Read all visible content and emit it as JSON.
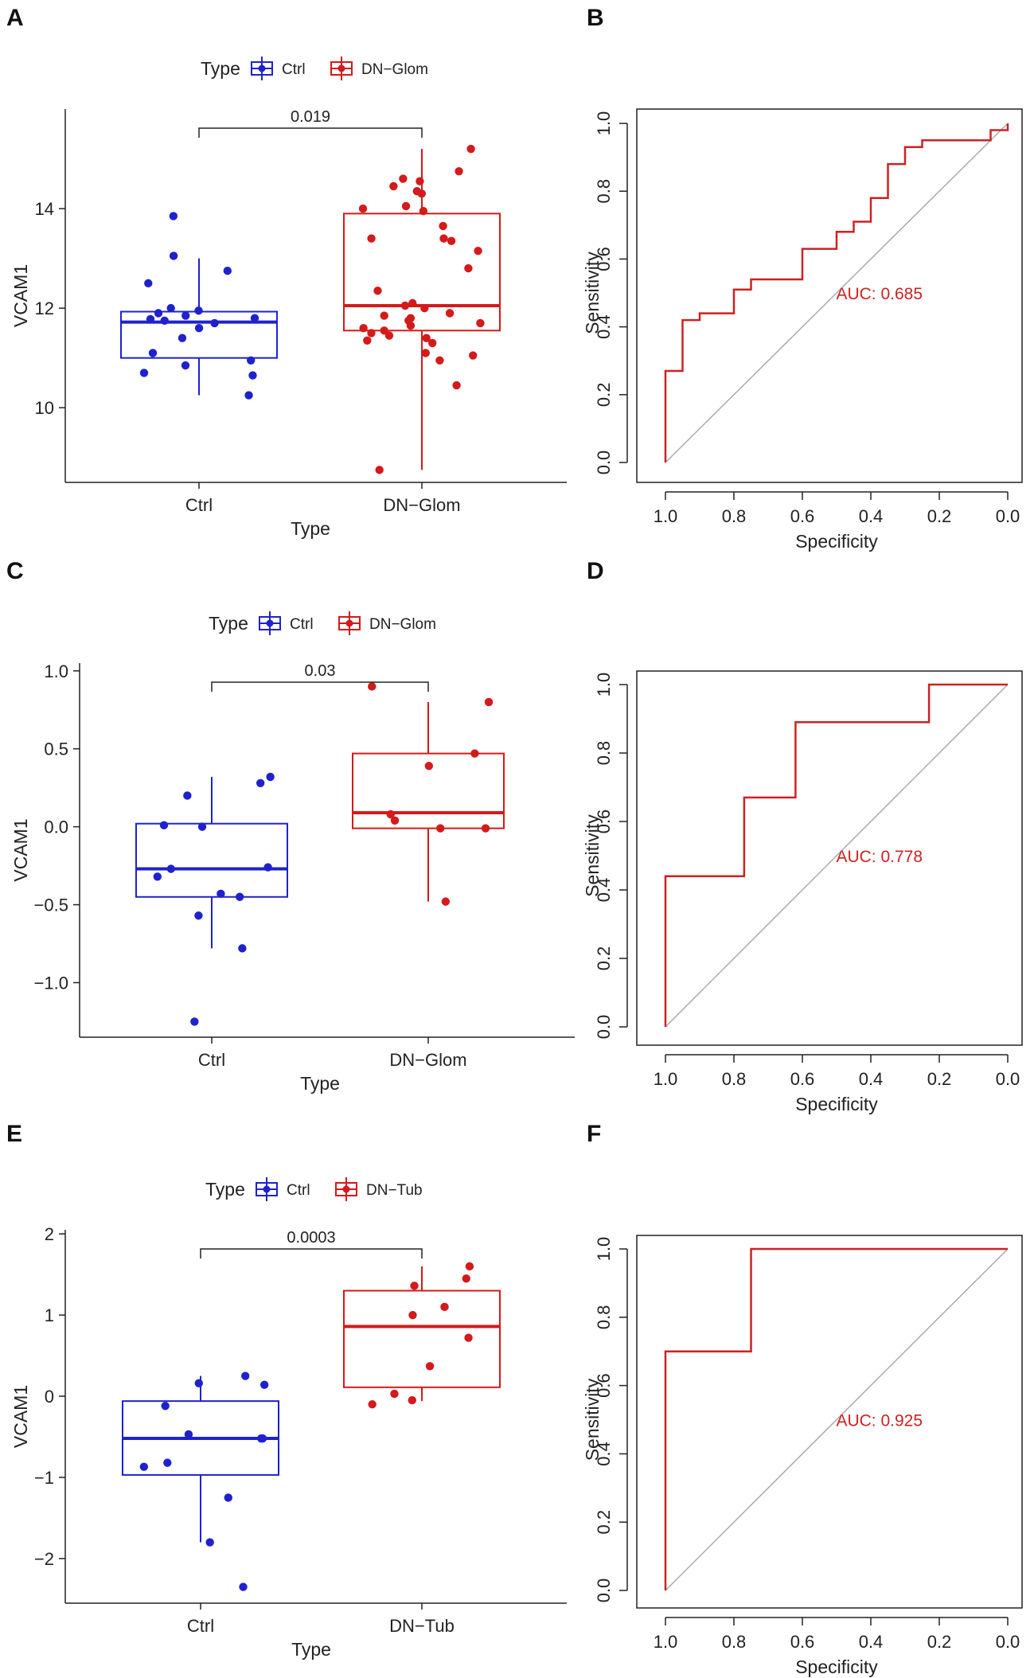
{
  "colors": {
    "ctrl": "#1f22cc",
    "dn": "#d41a1a",
    "roc": "#cc2222",
    "diagonal": "#aaaaaa",
    "axis": "#222222"
  },
  "chart_data": [
    {
      "panel": "A",
      "type": "boxplot",
      "ylabel": "VCAM1",
      "xlabel": "Type",
      "categories": [
        "Ctrl",
        "DN−Glom"
      ],
      "legend": {
        "title": "Type",
        "entries": [
          "Ctrl",
          "DN−Glom"
        ],
        "position": "top"
      },
      "ylim": [
        8.5,
        16.0
      ],
      "yticks": [
        10,
        12,
        14
      ],
      "pvalue": "0.019",
      "groups": [
        {
          "name": "Ctrl",
          "color": "ctrl",
          "min": 10.25,
          "q1": 11.0,
          "median": 11.72,
          "q3": 11.93,
          "max": 13.0,
          "points": [
            10.25,
            10.65,
            10.7,
            10.85,
            10.95,
            11.1,
            11.4,
            11.6,
            11.7,
            11.75,
            11.78,
            11.8,
            11.85,
            11.9,
            11.95,
            12.0,
            12.5,
            12.75,
            13.05,
            13.85
          ]
        },
        {
          "name": "DN−Glom",
          "color": "dn",
          "min": 8.75,
          "q1": 11.55,
          "median": 12.05,
          "q3": 13.9,
          "max": 15.2,
          "points": [
            8.75,
            10.45,
            10.95,
            11.05,
            11.1,
            11.3,
            11.35,
            11.4,
            11.45,
            11.5,
            11.55,
            11.6,
            11.65,
            11.7,
            11.75,
            11.8,
            11.85,
            11.9,
            12.0,
            12.05,
            12.1,
            12.35,
            12.8,
            13.15,
            13.35,
            13.4,
            13.4,
            13.65,
            13.95,
            14.0,
            14.05,
            14.3,
            14.35,
            14.45,
            14.55,
            14.6,
            14.75,
            15.2
          ]
        }
      ]
    },
    {
      "panel": "B",
      "type": "line",
      "subtype": "roc",
      "xlabel": "Specificity",
      "ylabel": "Sensitivity",
      "xlim": [
        1.0,
        0.0
      ],
      "ylim": [
        0.0,
        1.0
      ],
      "xticks": [
        "1.0",
        "0.8",
        "0.6",
        "0.4",
        "0.2",
        "0.0"
      ],
      "yticks": [
        "0.0",
        "0.2",
        "0.4",
        "0.6",
        "0.8",
        "1.0"
      ],
      "auc": "AUC: 0.685",
      "specificity": [
        1.0,
        1.0,
        0.95,
        0.95,
        0.9,
        0.9,
        0.8,
        0.8,
        0.75,
        0.75,
        0.6,
        0.6,
        0.5,
        0.5,
        0.45,
        0.45,
        0.4,
        0.4,
        0.35,
        0.35,
        0.3,
        0.3,
        0.25,
        0.25,
        0.05,
        0.05,
        0.0,
        0.0
      ],
      "sensitivity": [
        0.0,
        0.27,
        0.27,
        0.42,
        0.42,
        0.44,
        0.44,
        0.51,
        0.51,
        0.54,
        0.54,
        0.63,
        0.63,
        0.68,
        0.68,
        0.71,
        0.71,
        0.78,
        0.78,
        0.88,
        0.88,
        0.93,
        0.93,
        0.95,
        0.95,
        0.98,
        0.98,
        1.0
      ]
    },
    {
      "panel": "C",
      "type": "boxplot",
      "ylabel": "VCAM1",
      "xlabel": "Type",
      "categories": [
        "Ctrl",
        "DN−Glom"
      ],
      "legend": {
        "title": "Type",
        "entries": [
          "Ctrl",
          "DN−Glom"
        ],
        "position": "top"
      },
      "ylim": [
        -1.35,
        1.05
      ],
      "yticks": [
        -1.0,
        -0.5,
        0.0,
        0.5,
        1.0
      ],
      "pvalue": "0.03",
      "groups": [
        {
          "name": "Ctrl",
          "color": "ctrl",
          "min": -0.78,
          "q1": -0.45,
          "median": -0.27,
          "q3": 0.02,
          "max": 0.32,
          "points": [
            -1.25,
            -0.78,
            -0.57,
            -0.45,
            -0.43,
            -0.32,
            -0.27,
            -0.26,
            0.0,
            0.01,
            0.2,
            0.28,
            0.32
          ]
        },
        {
          "name": "DN−Glom",
          "color": "dn",
          "min": -0.48,
          "q1": -0.01,
          "median": 0.09,
          "q3": 0.47,
          "max": 0.8,
          "points": [
            -0.48,
            -0.01,
            -0.01,
            0.04,
            0.08,
            0.39,
            0.47,
            0.8,
            0.9
          ]
        }
      ]
    },
    {
      "panel": "D",
      "type": "line",
      "subtype": "roc",
      "xlabel": "Specificity",
      "ylabel": "Sensitivity",
      "xlim": [
        1.0,
        0.0
      ],
      "ylim": [
        0.0,
        1.0
      ],
      "xticks": [
        "1.0",
        "0.8",
        "0.6",
        "0.4",
        "0.2",
        "0.0"
      ],
      "yticks": [
        "0.0",
        "0.2",
        "0.4",
        "0.6",
        "0.8",
        "1.0"
      ],
      "auc": "AUC: 0.778",
      "specificity": [
        1.0,
        1.0,
        0.77,
        0.77,
        0.62,
        0.62,
        0.23,
        0.23,
        0.0
      ],
      "sensitivity": [
        0.0,
        0.44,
        0.44,
        0.67,
        0.67,
        0.89,
        0.89,
        1.0,
        1.0
      ]
    },
    {
      "panel": "E",
      "type": "boxplot",
      "ylabel": "VCAM1",
      "xlabel": "Type",
      "categories": [
        "Ctrl",
        "DN−Tub"
      ],
      "legend": {
        "title": "Type",
        "entries": [
          "Ctrl",
          "DN−Tub"
        ],
        "position": "top"
      },
      "ylim": [
        -2.55,
        2.05
      ],
      "yticks": [
        -2,
        -1,
        0,
        1,
        2
      ],
      "pvalue": "0.0003",
      "groups": [
        {
          "name": "Ctrl",
          "color": "ctrl",
          "min": -1.8,
          "q1": -0.97,
          "median": -0.52,
          "q3": -0.06,
          "max": 0.25,
          "points": [
            -2.35,
            -1.8,
            -1.25,
            -0.87,
            -0.82,
            -0.52,
            -0.52,
            -0.47,
            -0.12,
            0.14,
            0.16,
            0.25
          ]
        },
        {
          "name": "DN−Tub",
          "color": "dn",
          "min": -0.06,
          "q1": 0.11,
          "median": 0.86,
          "q3": 1.3,
          "max": 1.6,
          "points": [
            -0.1,
            -0.05,
            0.03,
            0.37,
            0.72,
            1.0,
            1.1,
            1.36,
            1.45,
            1.6
          ]
        }
      ]
    },
    {
      "panel": "F",
      "type": "line",
      "subtype": "roc",
      "xlabel": "Specificity",
      "ylabel": "Sensitivity",
      "xlim": [
        1.0,
        0.0
      ],
      "ylim": [
        0.0,
        1.0
      ],
      "xticks": [
        "1.0",
        "0.8",
        "0.6",
        "0.4",
        "0.2",
        "0.0"
      ],
      "yticks": [
        "0.0",
        "0.2",
        "0.4",
        "0.6",
        "0.8",
        "1.0"
      ],
      "auc": "AUC: 0.925",
      "specificity": [
        1.0,
        1.0,
        0.75,
        0.75,
        0.0
      ],
      "sensitivity": [
        0.0,
        0.7,
        0.7,
        1.0,
        1.0
      ]
    }
  ]
}
